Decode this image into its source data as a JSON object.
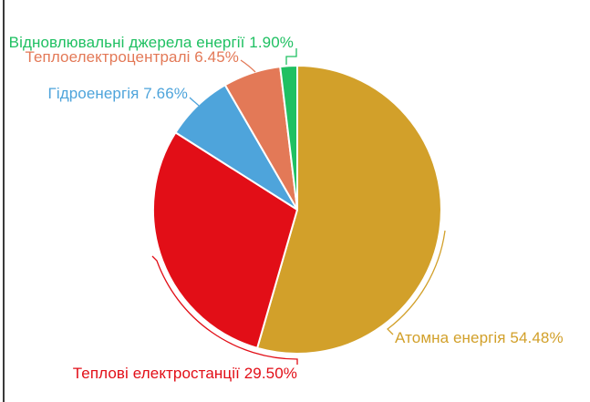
{
  "window": {
    "background": "#ffffff",
    "left_edge_color": "#3a3a3a"
  },
  "chart_data": {
    "type": "pie",
    "title": "",
    "unit": "%",
    "direction": "clockwise",
    "start_angle_deg": 0,
    "legend_position": "outside-callout-labels",
    "categories": [
      "Атомна енергія",
      "Теплові електростанції",
      "Гідроенергія",
      "Теплоелектроцентралі",
      "Відновлювальні джерела енергії"
    ],
    "values": [
      54.48,
      29.5,
      7.66,
      6.45,
      1.9
    ],
    "slices": [
      {
        "key": "nuclear",
        "label": "Атомна енергія",
        "value": 54.48,
        "label_text": "Атомна енергія 54.48%",
        "color": "#D2A02A"
      },
      {
        "key": "thermal-power-plants",
        "label": "Теплові електростанції",
        "value": 29.5,
        "label_text": "Теплові електростанції 29.50%",
        "color": "#E20E17"
      },
      {
        "key": "hydro",
        "label": "Гідроенергія",
        "value": 7.66,
        "label_text": "Гідроенергія 7.66%",
        "color": "#4EA4DB"
      },
      {
        "key": "combined-heat-power",
        "label": "Теплоелектроцентралі",
        "value": 6.45,
        "label_text": "Теплоелектроцентралі 6.45%",
        "color": "#E37957"
      },
      {
        "key": "renewables",
        "label": "Відновлювальні джерела енергії",
        "value": 1.9,
        "label_text": "Відновлювальні джерела енергії 1.90%",
        "color": "#1FC062"
      }
    ]
  }
}
